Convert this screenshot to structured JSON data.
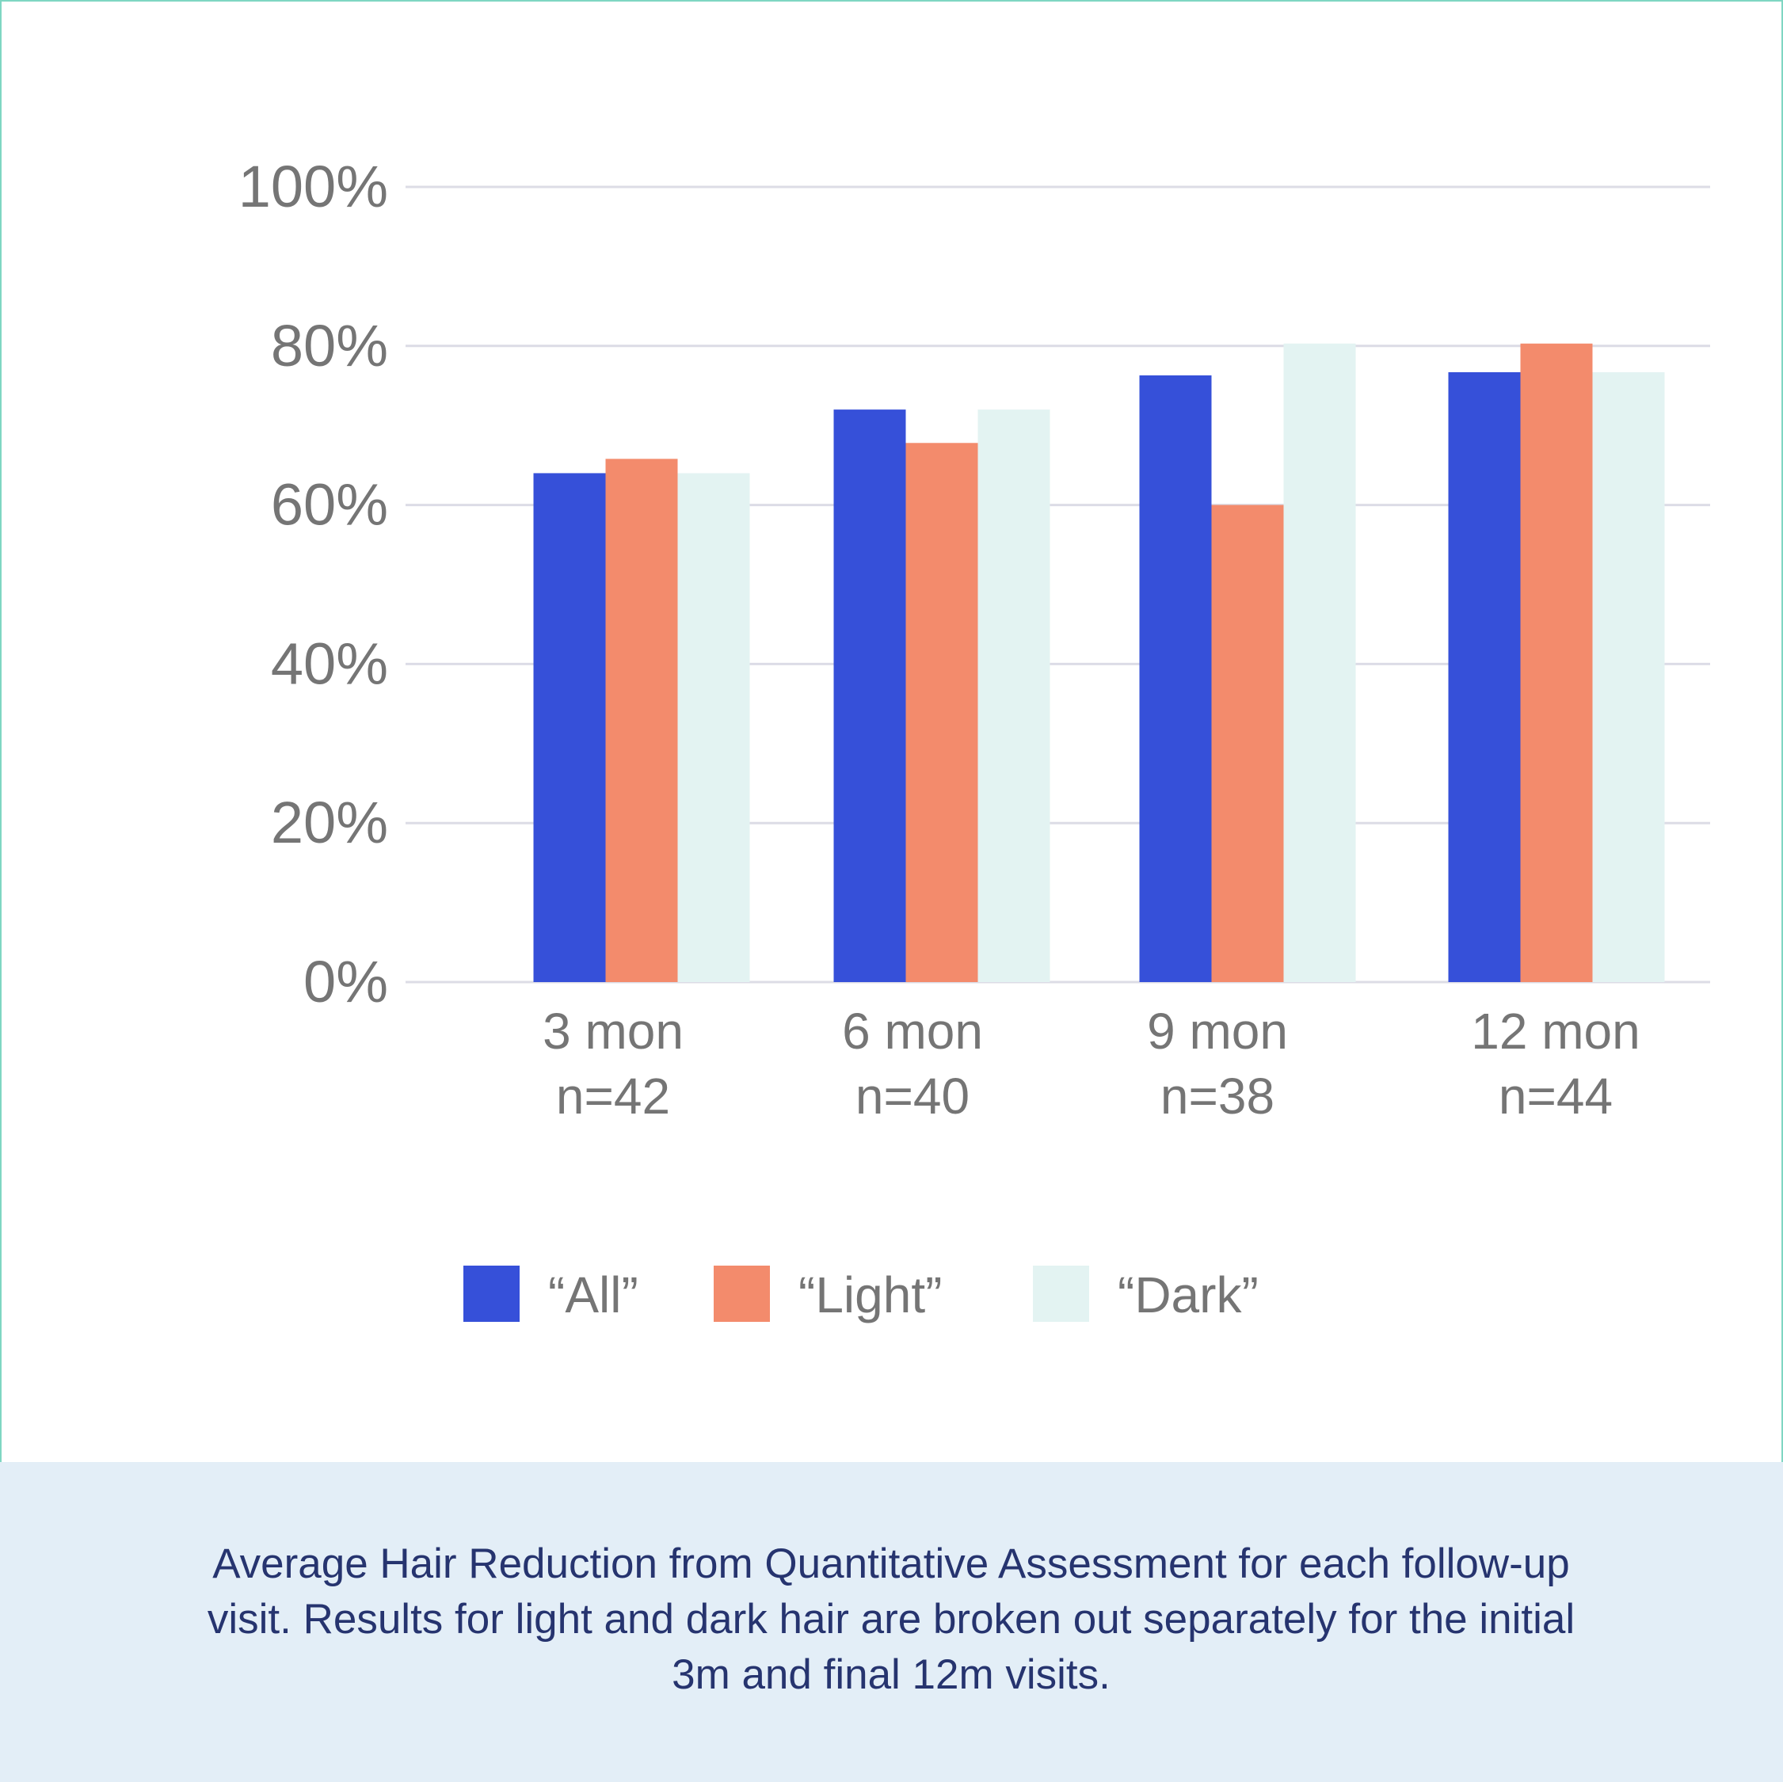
{
  "chart_data": {
    "type": "bar",
    "categories": [
      "3 mon",
      "6 mon",
      "9 mon",
      "12 mon"
    ],
    "category_counts": [
      "n=42",
      "n=40",
      "n=38",
      "n=44"
    ],
    "series": [
      {
        "name": "“All”",
        "color": "#3650d9",
        "values": [
          64,
          72,
          76.3,
          76.7
        ]
      },
      {
        "name": "“Light”",
        "color": "#f38b6c",
        "values": [
          65.8,
          67.8,
          60,
          80.3
        ]
      },
      {
        "name": "“Dark”",
        "color": "#e3f3f2",
        "values": [
          64,
          72,
          80.3,
          76.7
        ]
      }
    ],
    "y_ticks": [
      "0%",
      "20%",
      "40%",
      "60%",
      "80%",
      "100%"
    ],
    "ylim": [
      0,
      100
    ],
    "grid": true,
    "legend_position": "bottom"
  },
  "caption": "Average Hair Reduction from Quantitative Assessment for each follow-up visit. Results for light and dark hair are broken out separately for the initial 3m and final 12m visits."
}
